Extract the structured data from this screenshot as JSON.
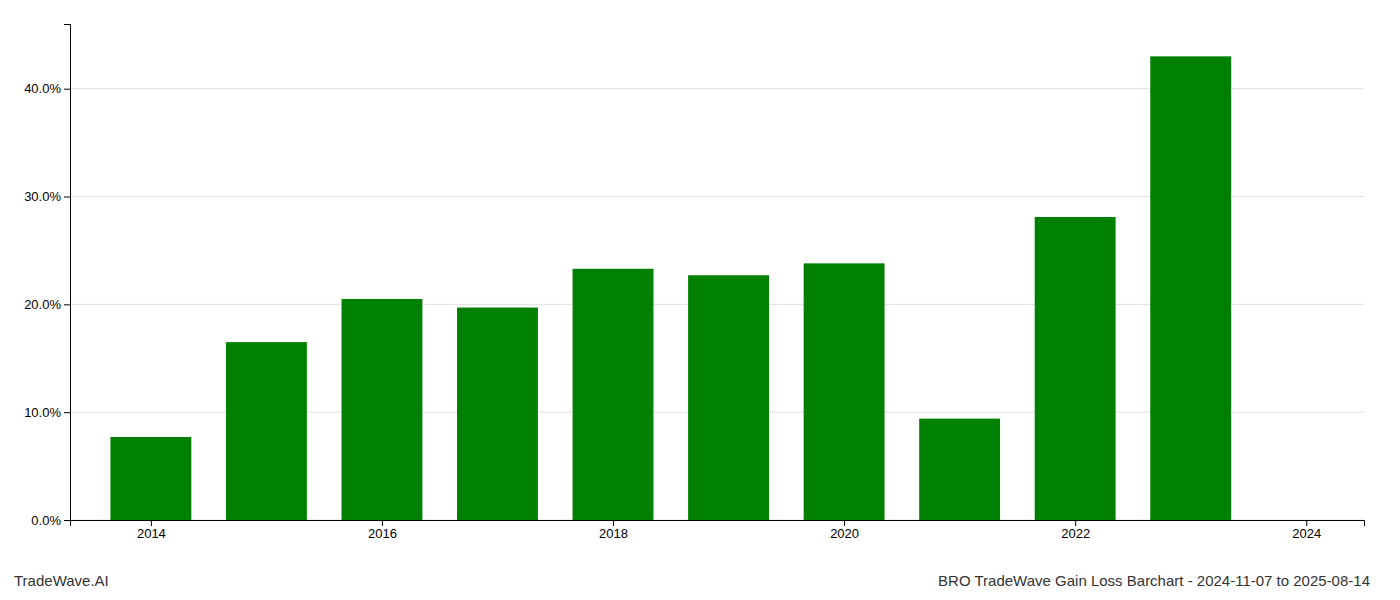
{
  "chart_data": {
    "type": "bar",
    "title": "BRO TradeWave Gain Loss Barchart - 2024-11-07 to 2025-08-14",
    "annotations": [
      "TradeWave.AI"
    ],
    "x": [
      2014,
      2015,
      2016,
      2017,
      2018,
      2019,
      2020,
      2021,
      2022,
      2023
    ],
    "values": [
      0.077,
      0.165,
      0.205,
      0.197,
      0.233,
      0.227,
      0.238,
      0.094,
      0.281,
      0.43
    ],
    "color": "#008000",
    "xlim": [
      2013.3,
      2024.5
    ],
    "xticks": [
      2014,
      2016,
      2018,
      2020,
      2022,
      2024
    ],
    "ylim": [
      0,
      0.46
    ],
    "yticks": [
      {
        "value": 0.0,
        "label": "0.0%"
      },
      {
        "value": 0.1,
        "label": "10.0%"
      },
      {
        "value": 0.2,
        "label": "20.0%"
      },
      {
        "value": 0.3,
        "label": "30.0%"
      },
      {
        "value": 0.4,
        "label": "40.0%"
      }
    ],
    "grid": true
  }
}
